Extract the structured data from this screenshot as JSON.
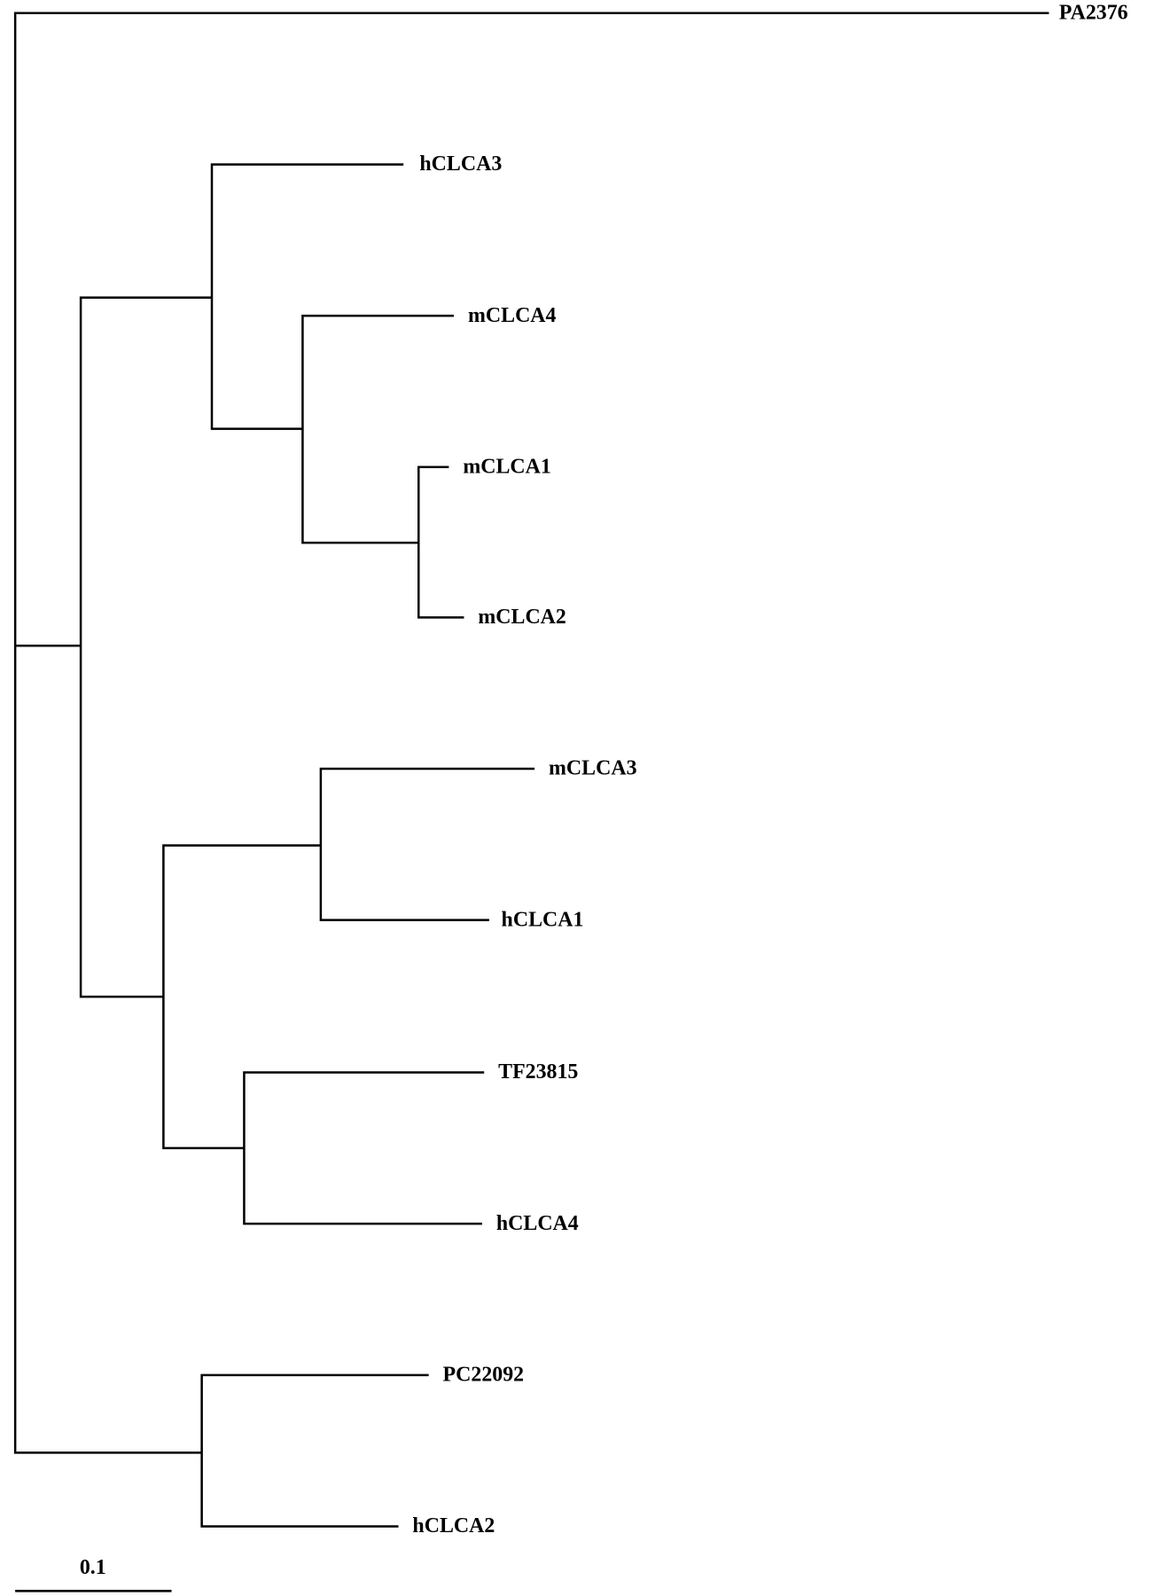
{
  "tree": {
    "leaves": [
      "PA2376",
      "hCLCA3",
      "mCLCA4",
      "mCLCA1",
      "mCLCA2",
      "mCLCA3",
      "hCLCA1",
      "TF23815",
      "hCLCA4",
      "PC22092",
      "hCLCA2"
    ],
    "scale_label": "0.1"
  }
}
